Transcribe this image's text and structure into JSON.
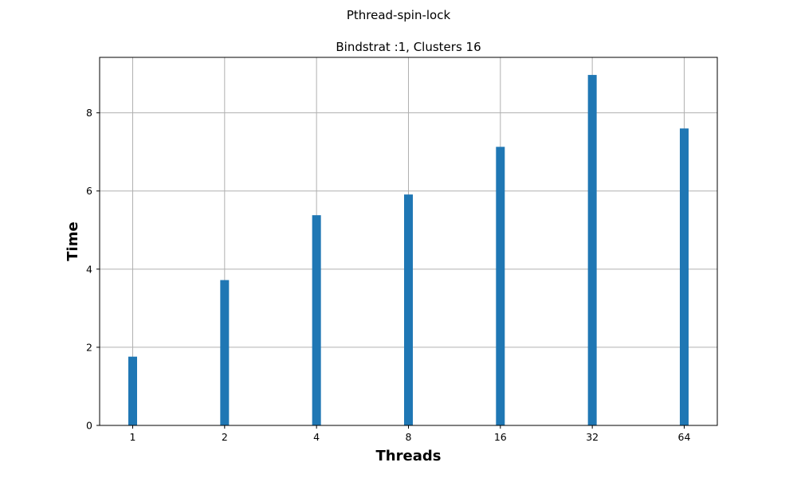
{
  "chart_data": {
    "type": "bar",
    "suptitle": "Pthread-spin-lock",
    "title": "Bindstrat :1, Clusters 16",
    "xlabel": "Threads",
    "ylabel": "Time",
    "categories": [
      "1",
      "2",
      "4",
      "8",
      "16",
      "32",
      "64"
    ],
    "values": [
      1.76,
      3.72,
      5.38,
      5.91,
      7.13,
      8.97,
      7.6
    ],
    "ylim": [
      0,
      9.42
    ],
    "yticks": [
      "0",
      "2",
      "4",
      "6",
      "8"
    ],
    "grid": true,
    "bar_color": "#1f77b4",
    "grid_color": "#b0b0b0"
  }
}
